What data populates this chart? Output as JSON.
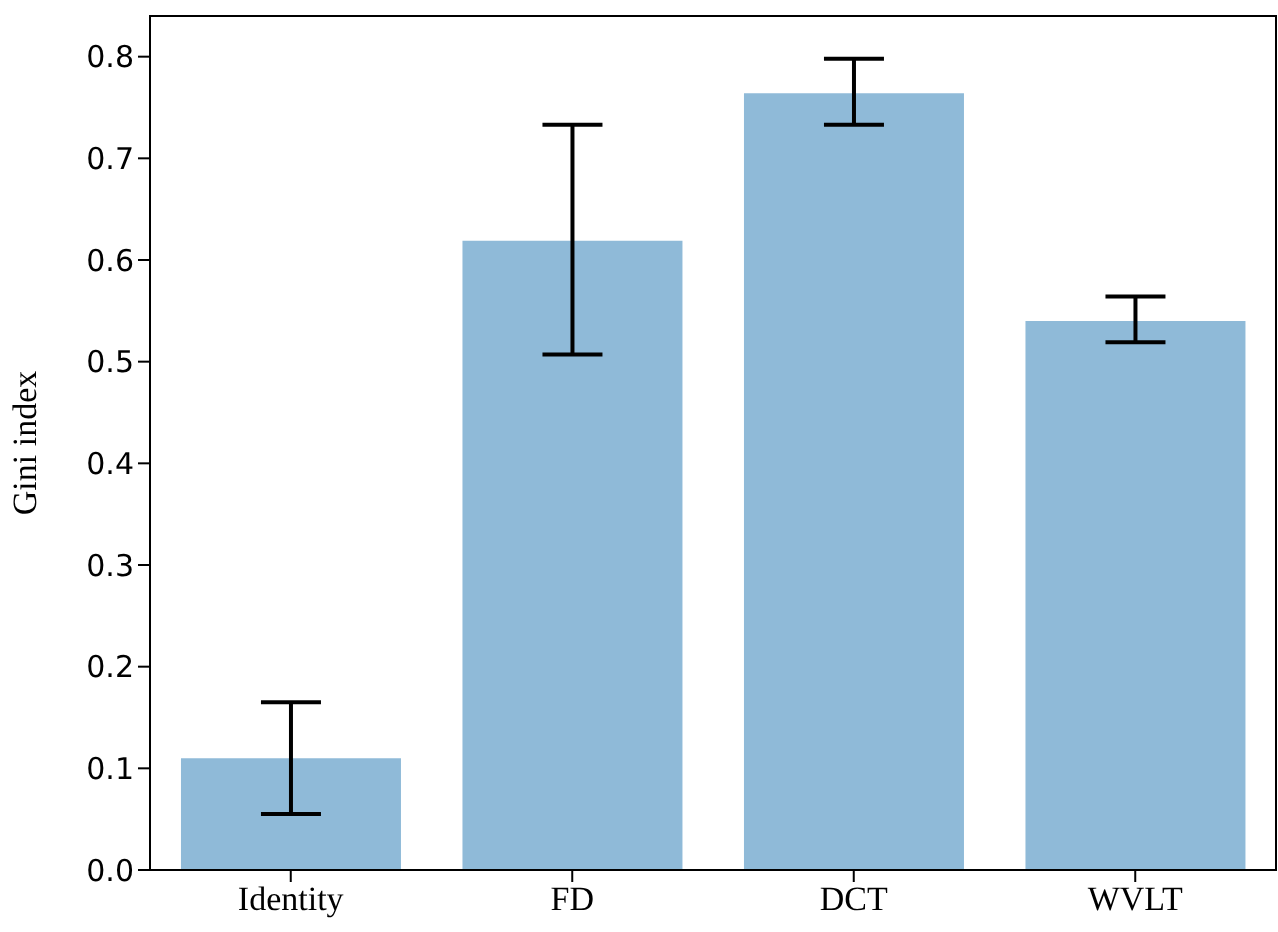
{
  "chart_data": {
    "type": "bar",
    "ylabel": "Gini index",
    "categories": [
      "Identity",
      "FD",
      "DCT",
      "WVLT"
    ],
    "values": [
      0.11,
      0.619,
      0.764,
      0.54
    ],
    "errors": [
      [
        0.055,
        0.165
      ],
      [
        0.507,
        0.733
      ],
      [
        0.733,
        0.798
      ],
      [
        0.519,
        0.564
      ]
    ],
    "color": "#8fbad8",
    "ylim": [
      0,
      0.84
    ],
    "yticks": [
      {
        "value": 0,
        "label": "0.0"
      },
      0.1,
      0.2,
      0.3,
      0.4,
      0.5,
      0.6,
      0.7,
      0.8
    ],
    "grid": false
  }
}
